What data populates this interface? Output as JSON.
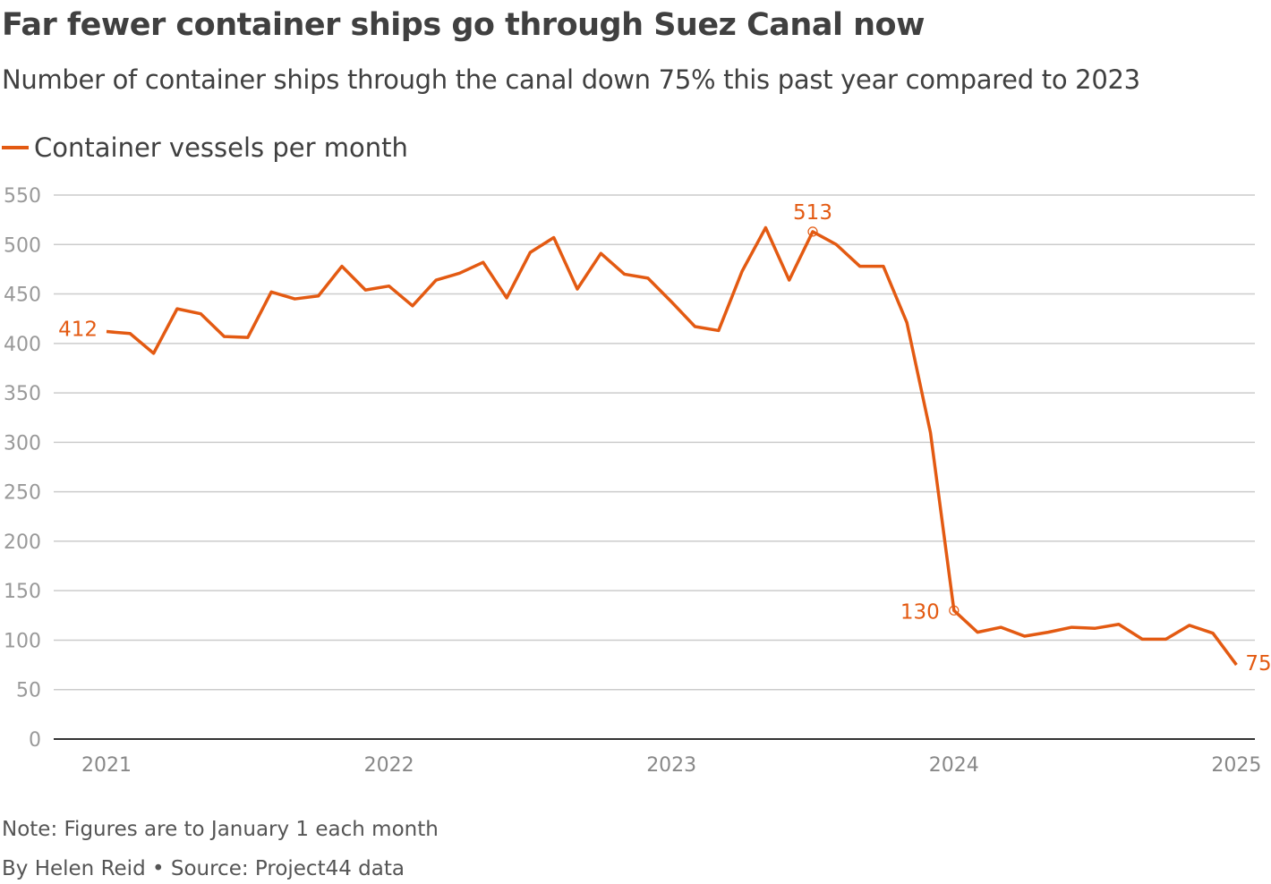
{
  "title": "Far fewer container ships go through Suez Canal now",
  "subtitle": "Number of container ships through the canal down 75% this past year compared to 2023",
  "note": "Note: Figures are to January 1 each month",
  "byline": "By Helen Reid • Source: Project44 data",
  "colors": {
    "line": "#e35a12",
    "grid": "#cccccc",
    "axis": "#333333",
    "tick": "#999999"
  },
  "chart_data": {
    "type": "line",
    "legend": "Container vessels per month",
    "legend_position": "top-left",
    "ylim": [
      0,
      550
    ],
    "yticks": [
      0,
      50,
      100,
      150,
      200,
      250,
      300,
      350,
      400,
      450,
      500,
      550
    ],
    "xticks": [
      "2021",
      "2022",
      "2023",
      "2024",
      "2025"
    ],
    "grid": true,
    "series": [
      {
        "name": "Container vessels per month",
        "x_start": "2021-01",
        "x_step": "month",
        "values": [
          412,
          410,
          390,
          435,
          430,
          407,
          406,
          452,
          445,
          448,
          478,
          454,
          458,
          438,
          464,
          471,
          482,
          446,
          492,
          507,
          455,
          491,
          470,
          466,
          442,
          417,
          413,
          473,
          517,
          464,
          513,
          500,
          478,
          478,
          421,
          310,
          130,
          108,
          113,
          104,
          108,
          113,
          112,
          116,
          101,
          101,
          115,
          107,
          75
        ]
      }
    ],
    "annotations": [
      {
        "index": 0,
        "label": "412"
      },
      {
        "index": 30,
        "label": "513",
        "marker": true
      },
      {
        "index": 36,
        "label": "130",
        "marker": true
      },
      {
        "index": 48,
        "label": "75"
      }
    ]
  }
}
